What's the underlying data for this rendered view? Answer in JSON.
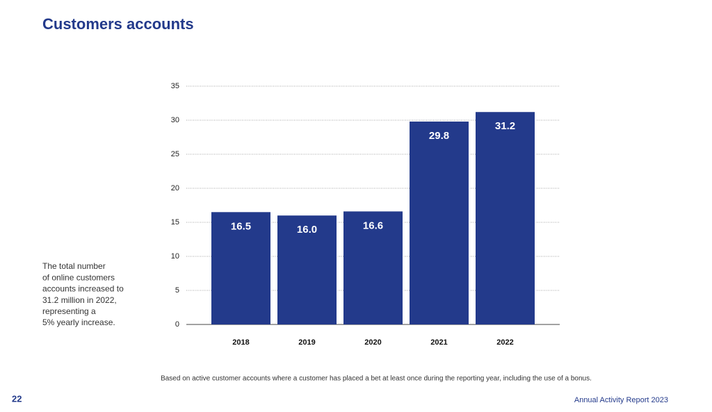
{
  "chart_data": {
    "type": "bar",
    "title": "Customers accounts",
    "categories": [
      "2018",
      "2019",
      "2020",
      "2021",
      "2022"
    ],
    "values": [
      16.5,
      16.0,
      16.6,
      29.8,
      31.2
    ],
    "value_labels": [
      "16.5",
      "16.0",
      "16.6",
      "29.8",
      "31.2"
    ],
    "color": "#233a8b",
    "ylim": [
      0,
      35
    ],
    "yticks": [
      0,
      5,
      10,
      15,
      20,
      25,
      30,
      35
    ],
    "grid": true
  },
  "side_note": [
    "The total number",
    "of online customers",
    "accounts increased to",
    "31.2 million in 2022,",
    "representing a",
    "5% yearly increase."
  ],
  "footnote": "Based on active customer accounts where a customer has placed a bet at least once during the reporting year, including the use of a bonus.",
  "page_number": "22",
  "report_name": "Annual Activity Report 2023"
}
